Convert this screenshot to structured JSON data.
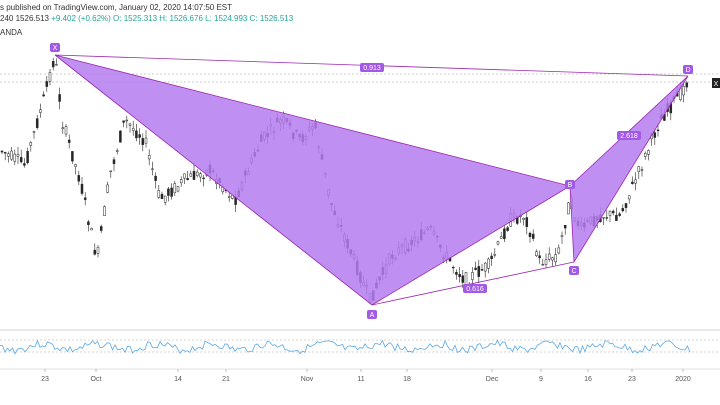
{
  "header": {
    "line1": "s published on TradingView.com, January 02, 2020 14:07:50 EST",
    "line2_symbol": "240",
    "line2_last": "1526.513",
    "line2_change": "+9.402 (+0.62%)",
    "line2_ohlc": "O: 1525.313 H: 1526.676 L: 1524.993 C: 1526.513",
    "line3": "ANDA"
  },
  "pattern": {
    "points": [
      {
        "label": "X"
      },
      {
        "label": "A"
      },
      {
        "label": "B"
      },
      {
        "label": "C"
      },
      {
        "label": "D"
      }
    ],
    "ratios": [
      "0.913",
      "0.616",
      "2.618"
    ],
    "fill_color": "#b57bf0",
    "line_color": "#9c27b0",
    "label_bg": "#a259e6"
  },
  "price_tag": "X",
  "xaxis": {
    "ticks": [
      "23",
      "Oct",
      "14",
      "21",
      "Nov",
      "11",
      "18",
      "Dec",
      "9",
      "16",
      "23",
      "2020"
    ]
  },
  "colors": {
    "candle_up": "#262626",
    "candle_down": "#262626",
    "rsi_line": "#5aa9e6"
  }
}
